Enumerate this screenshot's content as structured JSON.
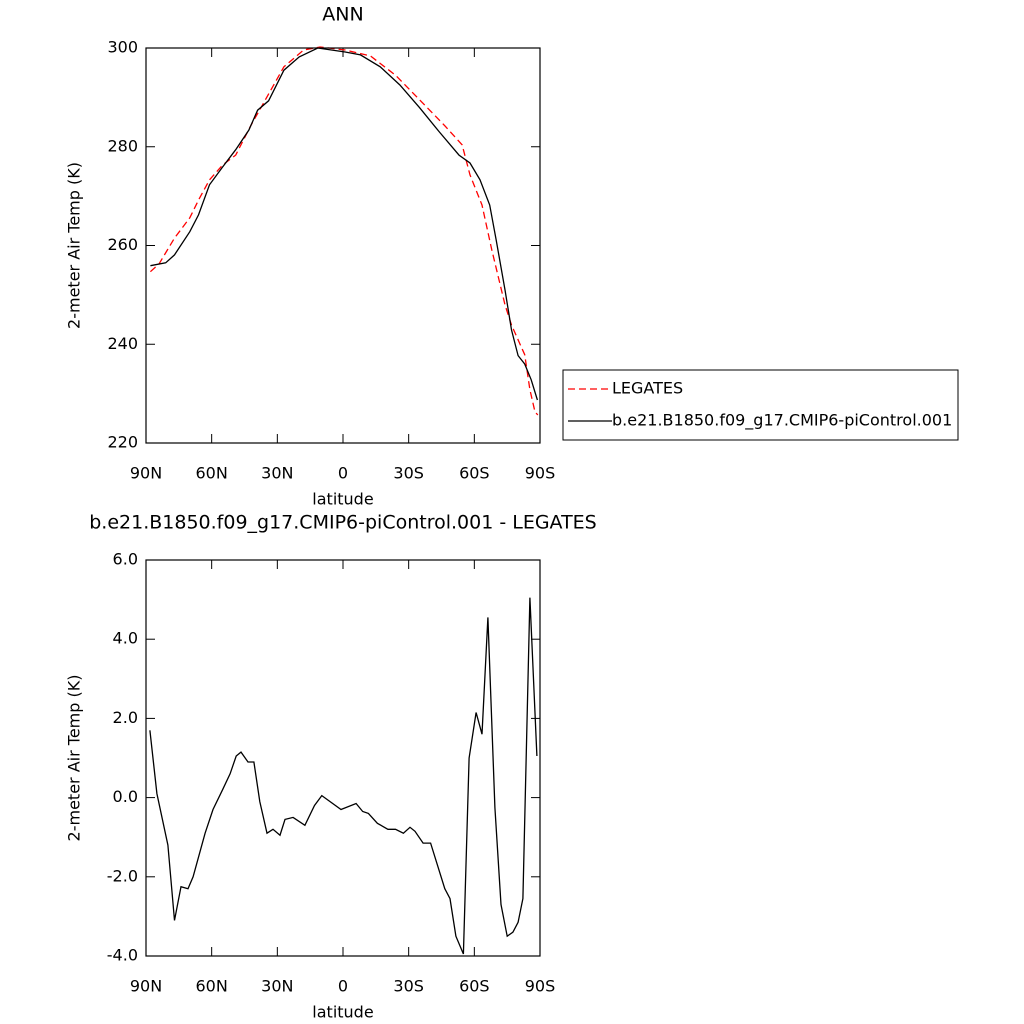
{
  "chart_data": [
    {
      "type": "line",
      "title": "ANN",
      "xlabel": "latitude",
      "ylabel": "2-meter Air Temp (K)",
      "xlim": [
        90,
        -90
      ],
      "xticks": [
        {
          "value": 90,
          "label": "90N"
        },
        {
          "value": 60,
          "label": "60N"
        },
        {
          "value": 30,
          "label": "30N"
        },
        0,
        {
          "value": -30,
          "label": "30S"
        },
        {
          "value": -60,
          "label": "60S"
        },
        {
          "value": -90,
          "label": "90S"
        }
      ],
      "ylim": [
        220,
        300
      ],
      "yticks": [
        220,
        240,
        260,
        280,
        300
      ],
      "legend": "right",
      "series": [
        {
          "name": "LEGATES",
          "color": "#ff0000",
          "linestyle": "dashed",
          "x": [
            88,
            84,
            77,
            70,
            66,
            61,
            55,
            49,
            42,
            37,
            27,
            18,
            10.5,
            -1,
            -12.5,
            -24,
            -35,
            -46.6,
            -54.4,
            -58,
            -63.5,
            -68,
            -74,
            -77,
            -82,
            -83,
            -85.4,
            -87.7,
            -89
          ],
          "values": [
            254.7,
            256.3,
            261.5,
            265.6,
            269.2,
            273.3,
            276.3,
            278.3,
            284.4,
            288.3,
            296.2,
            299.6,
            300.2,
            299.6,
            298.4,
            294.5,
            289.5,
            284.2,
            280.4,
            274.3,
            268.2,
            259.1,
            248,
            243.9,
            238.9,
            237.9,
            230.8,
            226.3,
            225.7
          ]
        },
        {
          "name": "b.e21.B1850.f09_g17.CMIP6-piControl.001",
          "color": "#000000",
          "linestyle": "solid",
          "x": [
            88,
            81,
            77,
            70,
            66,
            61,
            55,
            49,
            43,
            39,
            34,
            27,
            20,
            11.5,
            -1,
            -8,
            -17,
            -26,
            -35,
            -44,
            -53,
            -58,
            -62.6,
            -67,
            -70,
            -74,
            -77,
            -80,
            -83,
            -86,
            -88.8
          ],
          "values": [
            255.9,
            256.5,
            258.1,
            262.8,
            266.2,
            272.3,
            275.9,
            279.4,
            283.4,
            287.4,
            289.3,
            295.5,
            298.2,
            300,
            299.2,
            298.6,
            296.2,
            292.5,
            287.9,
            283,
            278.3,
            276.7,
            273.3,
            268.2,
            261.1,
            251,
            242.9,
            237.7,
            236,
            232.8,
            228.7
          ]
        }
      ]
    },
    {
      "type": "line",
      "title": "b.e21.B1850.f09_g17.CMIP6-piControl.001 - LEGATES",
      "xlabel": "latitude",
      "ylabel": "2-meter Air Temp (K)",
      "xlim": [
        90,
        -90
      ],
      "xticks": [
        {
          "value": 90,
          "label": "90N"
        },
        {
          "value": 60,
          "label": "60N"
        },
        {
          "value": 30,
          "label": "30N"
        },
        0,
        {
          "value": -30,
          "label": "30S"
        },
        {
          "value": -60,
          "label": "60S"
        },
        {
          "value": -90,
          "label": "90S"
        }
      ],
      "ylim": [
        -4,
        6
      ],
      "yticks": [
        {
          "value": -4,
          "label": "-4.0"
        },
        {
          "value": -2,
          "label": "-2.0"
        },
        {
          "value": 0,
          "label": "0.0"
        },
        {
          "value": 2,
          "label": "2.0"
        },
        {
          "value": 4,
          "label": "4.0"
        },
        {
          "value": 6,
          "label": "6.0"
        }
      ],
      "series": [
        {
          "color": "#000000",
          "linestyle": "solid",
          "x": [
            88.2,
            85,
            80,
            77,
            74,
            70.8,
            68.5,
            63,
            59.4,
            55,
            51.6,
            48.8,
            46.6,
            43.4,
            40.7,
            38,
            34.7,
            32,
            28.8,
            26.5,
            22.8,
            17.4,
            13,
            9.7,
            0.9,
            -6,
            -9,
            -11.6,
            -15.7,
            -20.5,
            -24,
            -27.6,
            -30.6,
            -32.9,
            -36.6,
            -40,
            -46.5,
            -48.9,
            -51.6,
            -55,
            -57.6,
            -60.8,
            -63.5,
            -66.2,
            -69.4,
            -72.2,
            -75,
            -77.6,
            -80,
            -82.2,
            -85.4,
            -88.6
          ],
          "values": [
            1.7,
            0.1,
            -1.2,
            -3.1,
            -2.25,
            -2.3,
            -2.0,
            -0.9,
            -0.3,
            0.2,
            0.6,
            1.05,
            1.15,
            0.9,
            0.9,
            -0.1,
            -0.9,
            -0.8,
            -0.95,
            -0.55,
            -0.5,
            -0.7,
            -0.2,
            0.05,
            -0.3,
            -0.15,
            -0.35,
            -0.4,
            -0.65,
            -0.8,
            -0.8,
            -0.9,
            -0.75,
            -0.85,
            -1.15,
            -1.15,
            -2.3,
            -2.55,
            -3.5,
            -3.95,
            1.0,
            2.15,
            1.6,
            4.55,
            -0.25,
            -2.7,
            -3.5,
            -3.4,
            -3.15,
            -2.55,
            5.05,
            1.05
          ]
        }
      ]
    }
  ]
}
